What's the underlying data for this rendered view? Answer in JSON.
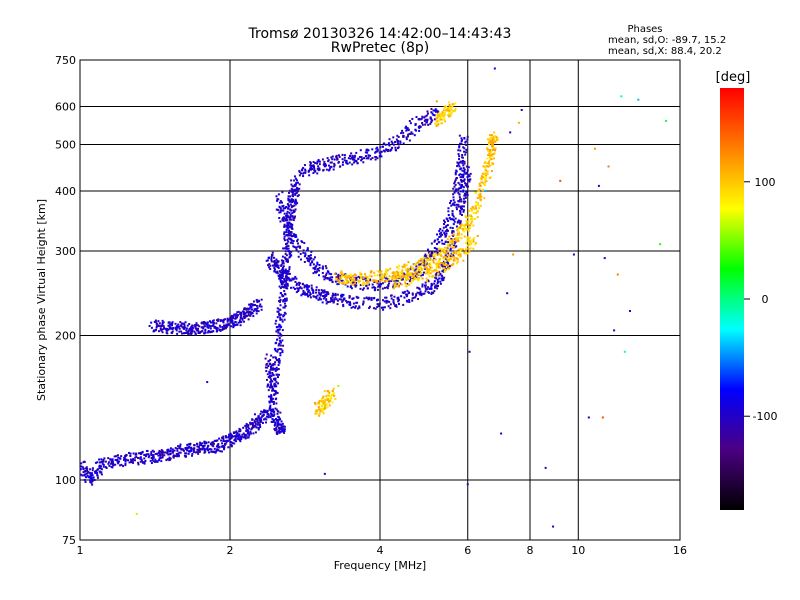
{
  "chart_data": {
    "type": "scatter",
    "title": "Tromsø 20130326 14:42:00–14:43:43",
    "subtitle": "RwPretec (8p)",
    "xlabel": "Frequency [MHz]",
    "ylabel": "Stationary phase Virtual Height [km]",
    "x_scale": "log",
    "y_scale": "log",
    "xlim": [
      1,
      16
    ],
    "ylim": [
      75,
      750
    ],
    "x_ticks": [
      1,
      2,
      4,
      6,
      8,
      10,
      16
    ],
    "x_tick_labels": [
      "1",
      "2",
      "4",
      "6",
      "8",
      "10",
      "16"
    ],
    "y_ticks": [
      75,
      100,
      200,
      300,
      400,
      500,
      600,
      750
    ],
    "y_tick_labels": [
      "75",
      "100",
      "200",
      "300",
      "400",
      "500",
      "600",
      "750"
    ],
    "grid": true,
    "phase_info": {
      "heading": "Phases",
      "line1": "mean, sd,O: -89.7, 15.2",
      "line2": "mean, sd,X:  88.4, 20.2"
    },
    "colorbar": {
      "label": "[deg]",
      "range": [
        -180,
        180
      ],
      "ticks": [
        100,
        0,
        -100
      ],
      "tick_labels": [
        "100",
        "0",
        "-100"
      ],
      "colors": [
        "#000000",
        "#4b0082",
        "#0000ff",
        "#00ffff",
        "#00ff00",
        "#ffff00",
        "#ff7f00",
        "#ff0000"
      ]
    },
    "series": [
      {
        "name": "O",
        "traces": [
          [
            [
              1.0,
              108
            ],
            [
              1.05,
              100
            ],
            [
              1.1,
              108
            ],
            [
              1.2,
              110
            ],
            [
              1.3,
              111
            ],
            [
              1.4,
              112
            ],
            [
              1.5,
              113
            ],
            [
              1.6,
              115
            ],
            [
              1.7,
              116
            ],
            [
              1.8,
              117
            ],
            [
              1.9,
              118
            ],
            [
              2.0,
              121
            ],
            [
              2.1,
              124
            ],
            [
              2.2,
              128
            ],
            [
              2.3,
              134
            ],
            [
              2.4,
              140
            ]
          ],
          [
            [
              2.4,
              290
            ],
            [
              2.5,
              275
            ],
            [
              2.6,
              262
            ],
            [
              2.8,
              250
            ],
            [
              3.0,
              243
            ],
            [
              3.2,
              238
            ],
            [
              3.5,
              235
            ],
            [
              4.0,
              232
            ],
            [
              4.5,
              240
            ],
            [
              5.0,
              250
            ],
            [
              5.3,
              265
            ],
            [
              5.5,
              290
            ],
            [
              5.7,
              340
            ],
            [
              5.9,
              400
            ],
            [
              6.0,
              440
            ]
          ],
          [
            [
              2.5,
              390
            ],
            [
              2.6,
              340
            ],
            [
              2.8,
              300
            ],
            [
              3.0,
              275
            ],
            [
              3.3,
              262
            ],
            [
              3.6,
              258
            ],
            [
              4.0,
              255
            ],
            [
              4.4,
              262
            ],
            [
              4.8,
              275
            ],
            [
              5.1,
              295
            ],
            [
              5.4,
              330
            ],
            [
              5.7,
              390
            ],
            [
              5.8,
              450
            ],
            [
              5.9,
              520
            ]
          ],
          [
            [
              2.8,
              440
            ],
            [
              3.0,
              450
            ],
            [
              3.3,
              460
            ],
            [
              3.6,
              470
            ],
            [
              4.0,
              480
            ],
            [
              4.4,
              510
            ],
            [
              4.8,
              560
            ],
            [
              5.2,
              580
            ]
          ],
          [
            [
              1.4,
              210
            ],
            [
              1.5,
              208
            ],
            [
              1.6,
              207
            ],
            [
              1.7,
              207
            ],
            [
              1.8,
              208
            ],
            [
              1.9,
              210
            ],
            [
              2.0,
              213
            ],
            [
              2.1,
              218
            ],
            [
              2.2,
              225
            ],
            [
              2.3,
              232
            ]
          ],
          [
            [
              2.45,
              150
            ],
            [
              2.5,
              180
            ],
            [
              2.52,
              210
            ],
            [
              2.55,
              240
            ],
            [
              2.58,
              270
            ],
            [
              2.6,
              300
            ],
            [
              2.62,
              330
            ],
            [
              2.65,
              360
            ],
            [
              2.68,
              390
            ],
            [
              2.72,
              420
            ]
          ],
          [
            [
              2.4,
              180
            ],
            [
              2.42,
              160
            ],
            [
              2.45,
              140
            ],
            [
              2.5,
              130
            ],
            [
              2.55,
              125
            ]
          ]
        ],
        "phase": -100
      },
      {
        "name": "X",
        "traces": [
          [
            [
              3.3,
              265
            ],
            [
              3.5,
              262
            ],
            [
              3.8,
              264
            ],
            [
              4.2,
              268
            ],
            [
              4.6,
              275
            ],
            [
              5.0,
              285
            ],
            [
              5.4,
              300
            ],
            [
              5.8,
              325
            ],
            [
              6.1,
              350
            ],
            [
              6.4,
              400
            ],
            [
              6.6,
              450
            ],
            [
              6.7,
              500
            ],
            [
              6.8,
              520
            ]
          ],
          [
            [
              4.2,
              258
            ],
            [
              4.6,
              262
            ],
            [
              5.0,
              270
            ],
            [
              5.4,
              280
            ],
            [
              5.8,
              295
            ],
            [
              6.2,
              320
            ]
          ],
          [
            [
              5.2,
              560
            ],
            [
              5.4,
              580
            ],
            [
              5.6,
              600
            ]
          ],
          [
            [
              3.0,
              140
            ],
            [
              3.1,
              145
            ],
            [
              3.2,
              152
            ]
          ]
        ],
        "phase": 100
      }
    ],
    "scattered_points": [
      [
        1.3,
        85,
        60
      ],
      [
        1.8,
        160,
        -100
      ],
      [
        3.1,
        103,
        -100
      ],
      [
        3.3,
        157,
        60
      ],
      [
        5.2,
        615,
        120
      ],
      [
        6.0,
        98,
        -100
      ],
      [
        6.05,
        185,
        -100
      ],
      [
        6.5,
        400,
        -40
      ],
      [
        7.0,
        125,
        -100
      ],
      [
        7.2,
        245,
        -100
      ],
      [
        7.4,
        295,
        120
      ],
      [
        7.6,
        555,
        110
      ],
      [
        8.6,
        106,
        -100
      ],
      [
        8.9,
        80,
        -100
      ],
      [
        9.2,
        420,
        150
      ],
      [
        9.8,
        295,
        -100
      ],
      [
        10.5,
        135,
        -100
      ],
      [
        10.8,
        490,
        120
      ],
      [
        11.2,
        135,
        150
      ],
      [
        11.3,
        290,
        -100
      ],
      [
        11.5,
        450,
        130
      ],
      [
        11.8,
        205,
        -100
      ],
      [
        12.0,
        268,
        130
      ],
      [
        12.2,
        630,
        -10
      ],
      [
        12.4,
        185,
        -10
      ],
      [
        12.7,
        225,
        -100
      ],
      [
        13.2,
        620,
        -40
      ],
      [
        14.6,
        310,
        30
      ],
      [
        15.0,
        560,
        10
      ],
      [
        6.8,
        720,
        -90
      ],
      [
        7.7,
        590,
        -100
      ],
      [
        7.3,
        530,
        -100
      ],
      [
        11.0,
        410,
        -100
      ]
    ]
  }
}
